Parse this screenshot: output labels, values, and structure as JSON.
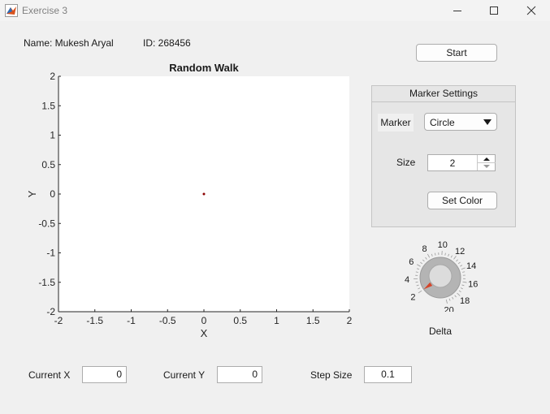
{
  "window": {
    "title": "Exercise 3"
  },
  "header": {
    "name_label": "Name: Mukesh Aryal",
    "id_label": "ID: 268456"
  },
  "start_button": {
    "label": "Start"
  },
  "chart_data": {
    "type": "scatter",
    "title": "Random Walk",
    "xlabel": "X",
    "ylabel": "Y",
    "xlim": [
      -2,
      2
    ],
    "ylim": [
      -2,
      2
    ],
    "x_ticks": [
      "-2",
      "-1.5",
      "-1",
      "-0.5",
      "0",
      "0.5",
      "1",
      "1.5",
      "2"
    ],
    "y_ticks": [
      "2",
      "1.5",
      "1",
      "0.5",
      "0",
      "-0.5",
      "-1",
      "-1.5",
      "-2"
    ],
    "points": [
      {
        "x": 0,
        "y": 0
      }
    ],
    "marker_color": "#8b0000",
    "grid": false
  },
  "marker_settings": {
    "title": "Marker Settings",
    "marker_label": "Marker",
    "marker_value": "Circle",
    "size_label": "Size",
    "size_value": "2",
    "set_color_label": "Set Color"
  },
  "knob": {
    "label": "Delta",
    "tick_labels": [
      "2",
      "4",
      "6",
      "8",
      "10",
      "12",
      "14",
      "16",
      "18",
      "20"
    ],
    "min": 2,
    "max": 20,
    "value": 2
  },
  "bottom": {
    "current_x_label": "Current X",
    "current_x_value": "0",
    "current_y_label": "Current Y",
    "current_y_value": "0",
    "step_size_label": "Step Size",
    "step_size_value": "0.1"
  },
  "colors": {
    "accent": "#d4452a",
    "background": "#f0f0f0",
    "panel": "#e6e6e6"
  }
}
